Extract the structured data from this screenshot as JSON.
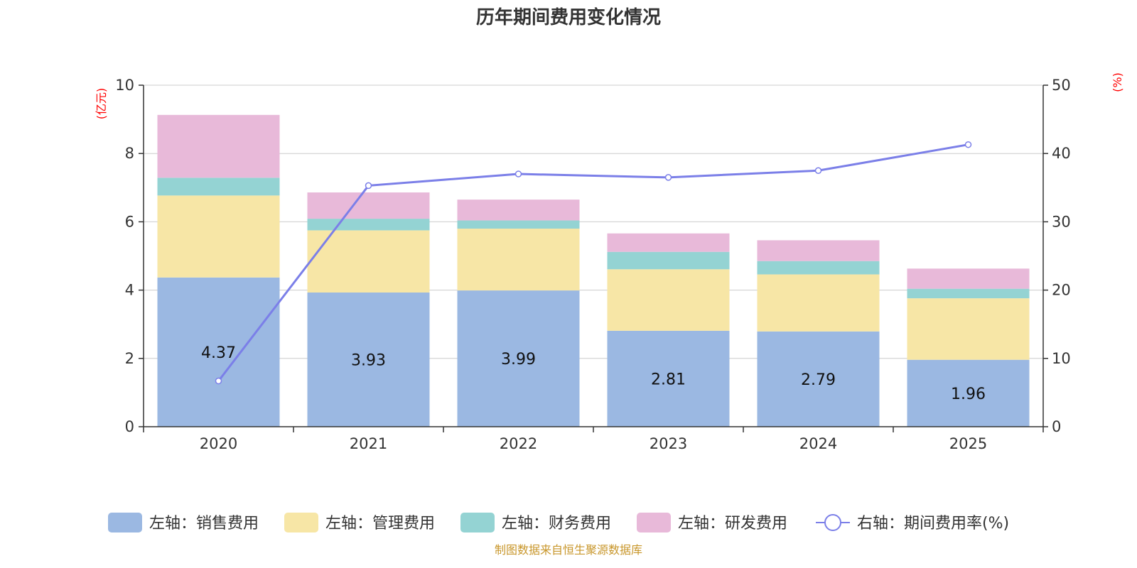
{
  "chart_data": {
    "type": "bar",
    "title": "历年期间费用变化情况",
    "categories": [
      "2020",
      "2021",
      "2022",
      "2023",
      "2024",
      "2025"
    ],
    "y_left": {
      "unit": "(亿元)",
      "ylim": [
        0,
        10
      ],
      "ticks": [
        "0",
        "2",
        "4",
        "6",
        "8",
        "10"
      ],
      "tick_values": [
        0,
        2,
        4,
        6,
        8,
        10
      ]
    },
    "y_right": {
      "unit": "(%)",
      "ylim": [
        0,
        50
      ],
      "ticks": [
        "0",
        "10",
        "20",
        "30",
        "40",
        "50"
      ],
      "tick_values": [
        0,
        10,
        20,
        30,
        40,
        50
      ]
    },
    "series": [
      {
        "name": "左轴：销售费用",
        "type": "bar",
        "stack": true,
        "color": "#9bb8e2",
        "values": [
          4.37,
          3.93,
          3.99,
          2.81,
          2.79,
          1.96
        ],
        "labels": [
          "4.37",
          "3.93",
          "3.99",
          "2.81",
          "2.79",
          "1.96"
        ]
      },
      {
        "name": "左轴：管理费用",
        "type": "bar",
        "stack": true,
        "color": "#f7e6a6",
        "values": [
          2.4,
          1.82,
          1.81,
          1.8,
          1.67,
          1.8
        ]
      },
      {
        "name": "左轴：财务费用",
        "type": "bar",
        "stack": true,
        "color": "#94d3d3",
        "values": [
          0.52,
          0.34,
          0.24,
          0.51,
          0.39,
          0.28
        ]
      },
      {
        "name": "左轴：研发费用",
        "type": "bar",
        "stack": true,
        "color": "#e8b9d9",
        "values": [
          1.84,
          0.77,
          0.61,
          0.54,
          0.61,
          0.59
        ]
      },
      {
        "name": "右轴：期间费用率(%)",
        "type": "line",
        "axis": "right",
        "color": "#7b7fe8",
        "values": [
          6.7,
          35.3,
          37.0,
          36.5,
          37.5,
          41.3
        ]
      }
    ],
    "legend_position": "bottom",
    "grid": true
  },
  "footer": {
    "source": "制图数据来自恒生聚源数据库"
  }
}
